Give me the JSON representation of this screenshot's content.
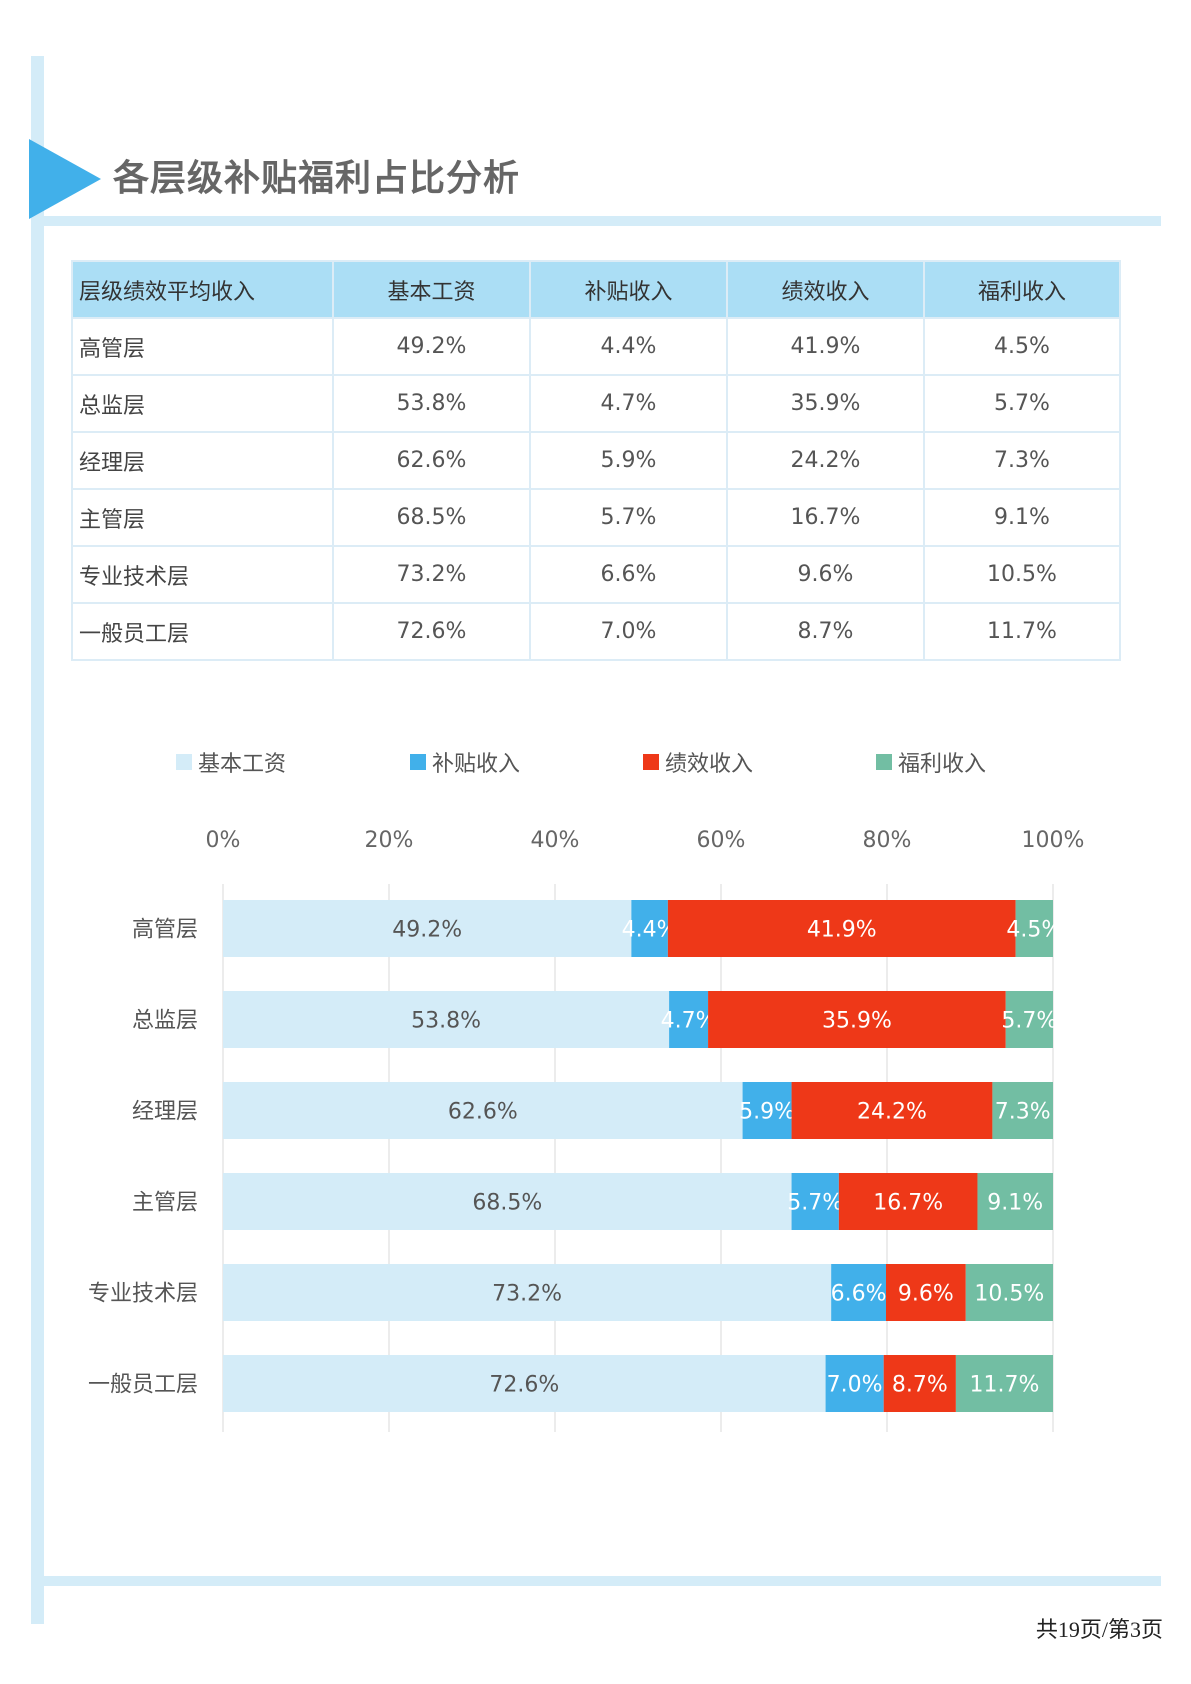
{
  "title": "各层级补贴福利占比分析",
  "table": {
    "headers": [
      "层级绩效平均收入",
      "基本工资",
      "补贴收入",
      "绩效收入",
      "福利收入"
    ],
    "rows": [
      [
        "高管层",
        "49.2%",
        "4.4%",
        "41.9%",
        "4.5%"
      ],
      [
        "总监层",
        "53.8%",
        "4.7%",
        "35.9%",
        "5.7%"
      ],
      [
        "经理层",
        "62.6%",
        "5.9%",
        "24.2%",
        "7.3%"
      ],
      [
        "主管层",
        "68.5%",
        "5.7%",
        "16.7%",
        "9.1%"
      ],
      [
        "专业技术层",
        "73.2%",
        "6.6%",
        "9.6%",
        "10.5%"
      ],
      [
        "一般员工层",
        "72.6%",
        "7.0%",
        "8.7%",
        "11.7%"
      ]
    ]
  },
  "chart_data": {
    "type": "bar",
    "orientation": "horizontal",
    "stacked": "percent",
    "categories": [
      "高管层",
      "总监层",
      "经理层",
      "主管层",
      "专业技术层",
      "一般员工层"
    ],
    "series": [
      {
        "name": "基本工资",
        "color": "#d4ecf8",
        "label_color": "#555555",
        "values": [
          49.2,
          53.8,
          62.6,
          68.5,
          73.2,
          72.6
        ]
      },
      {
        "name": "补贴收入",
        "color": "#41b0ea",
        "label_color": "#ffffff",
        "values": [
          4.4,
          4.7,
          5.9,
          5.7,
          6.6,
          7.0
        ]
      },
      {
        "name": "绩效收入",
        "color": "#ee3818",
        "label_color": "#ffffff",
        "values": [
          41.9,
          35.9,
          24.2,
          16.7,
          9.6,
          8.7
        ]
      },
      {
        "name": "福利收入",
        "color": "#72bea3",
        "label_color": "#ffffff",
        "values": [
          4.5,
          5.7,
          7.3,
          9.1,
          10.5,
          11.7
        ]
      }
    ],
    "x_ticks": [
      "0%",
      "20%",
      "40%",
      "60%",
      "80%",
      "100%"
    ],
    "xlim": [
      0,
      100
    ],
    "grid": true,
    "legend_position": "top",
    "axis_position": "top",
    "data_labels": true
  },
  "footer": {
    "page": "共19页/第3页"
  }
}
